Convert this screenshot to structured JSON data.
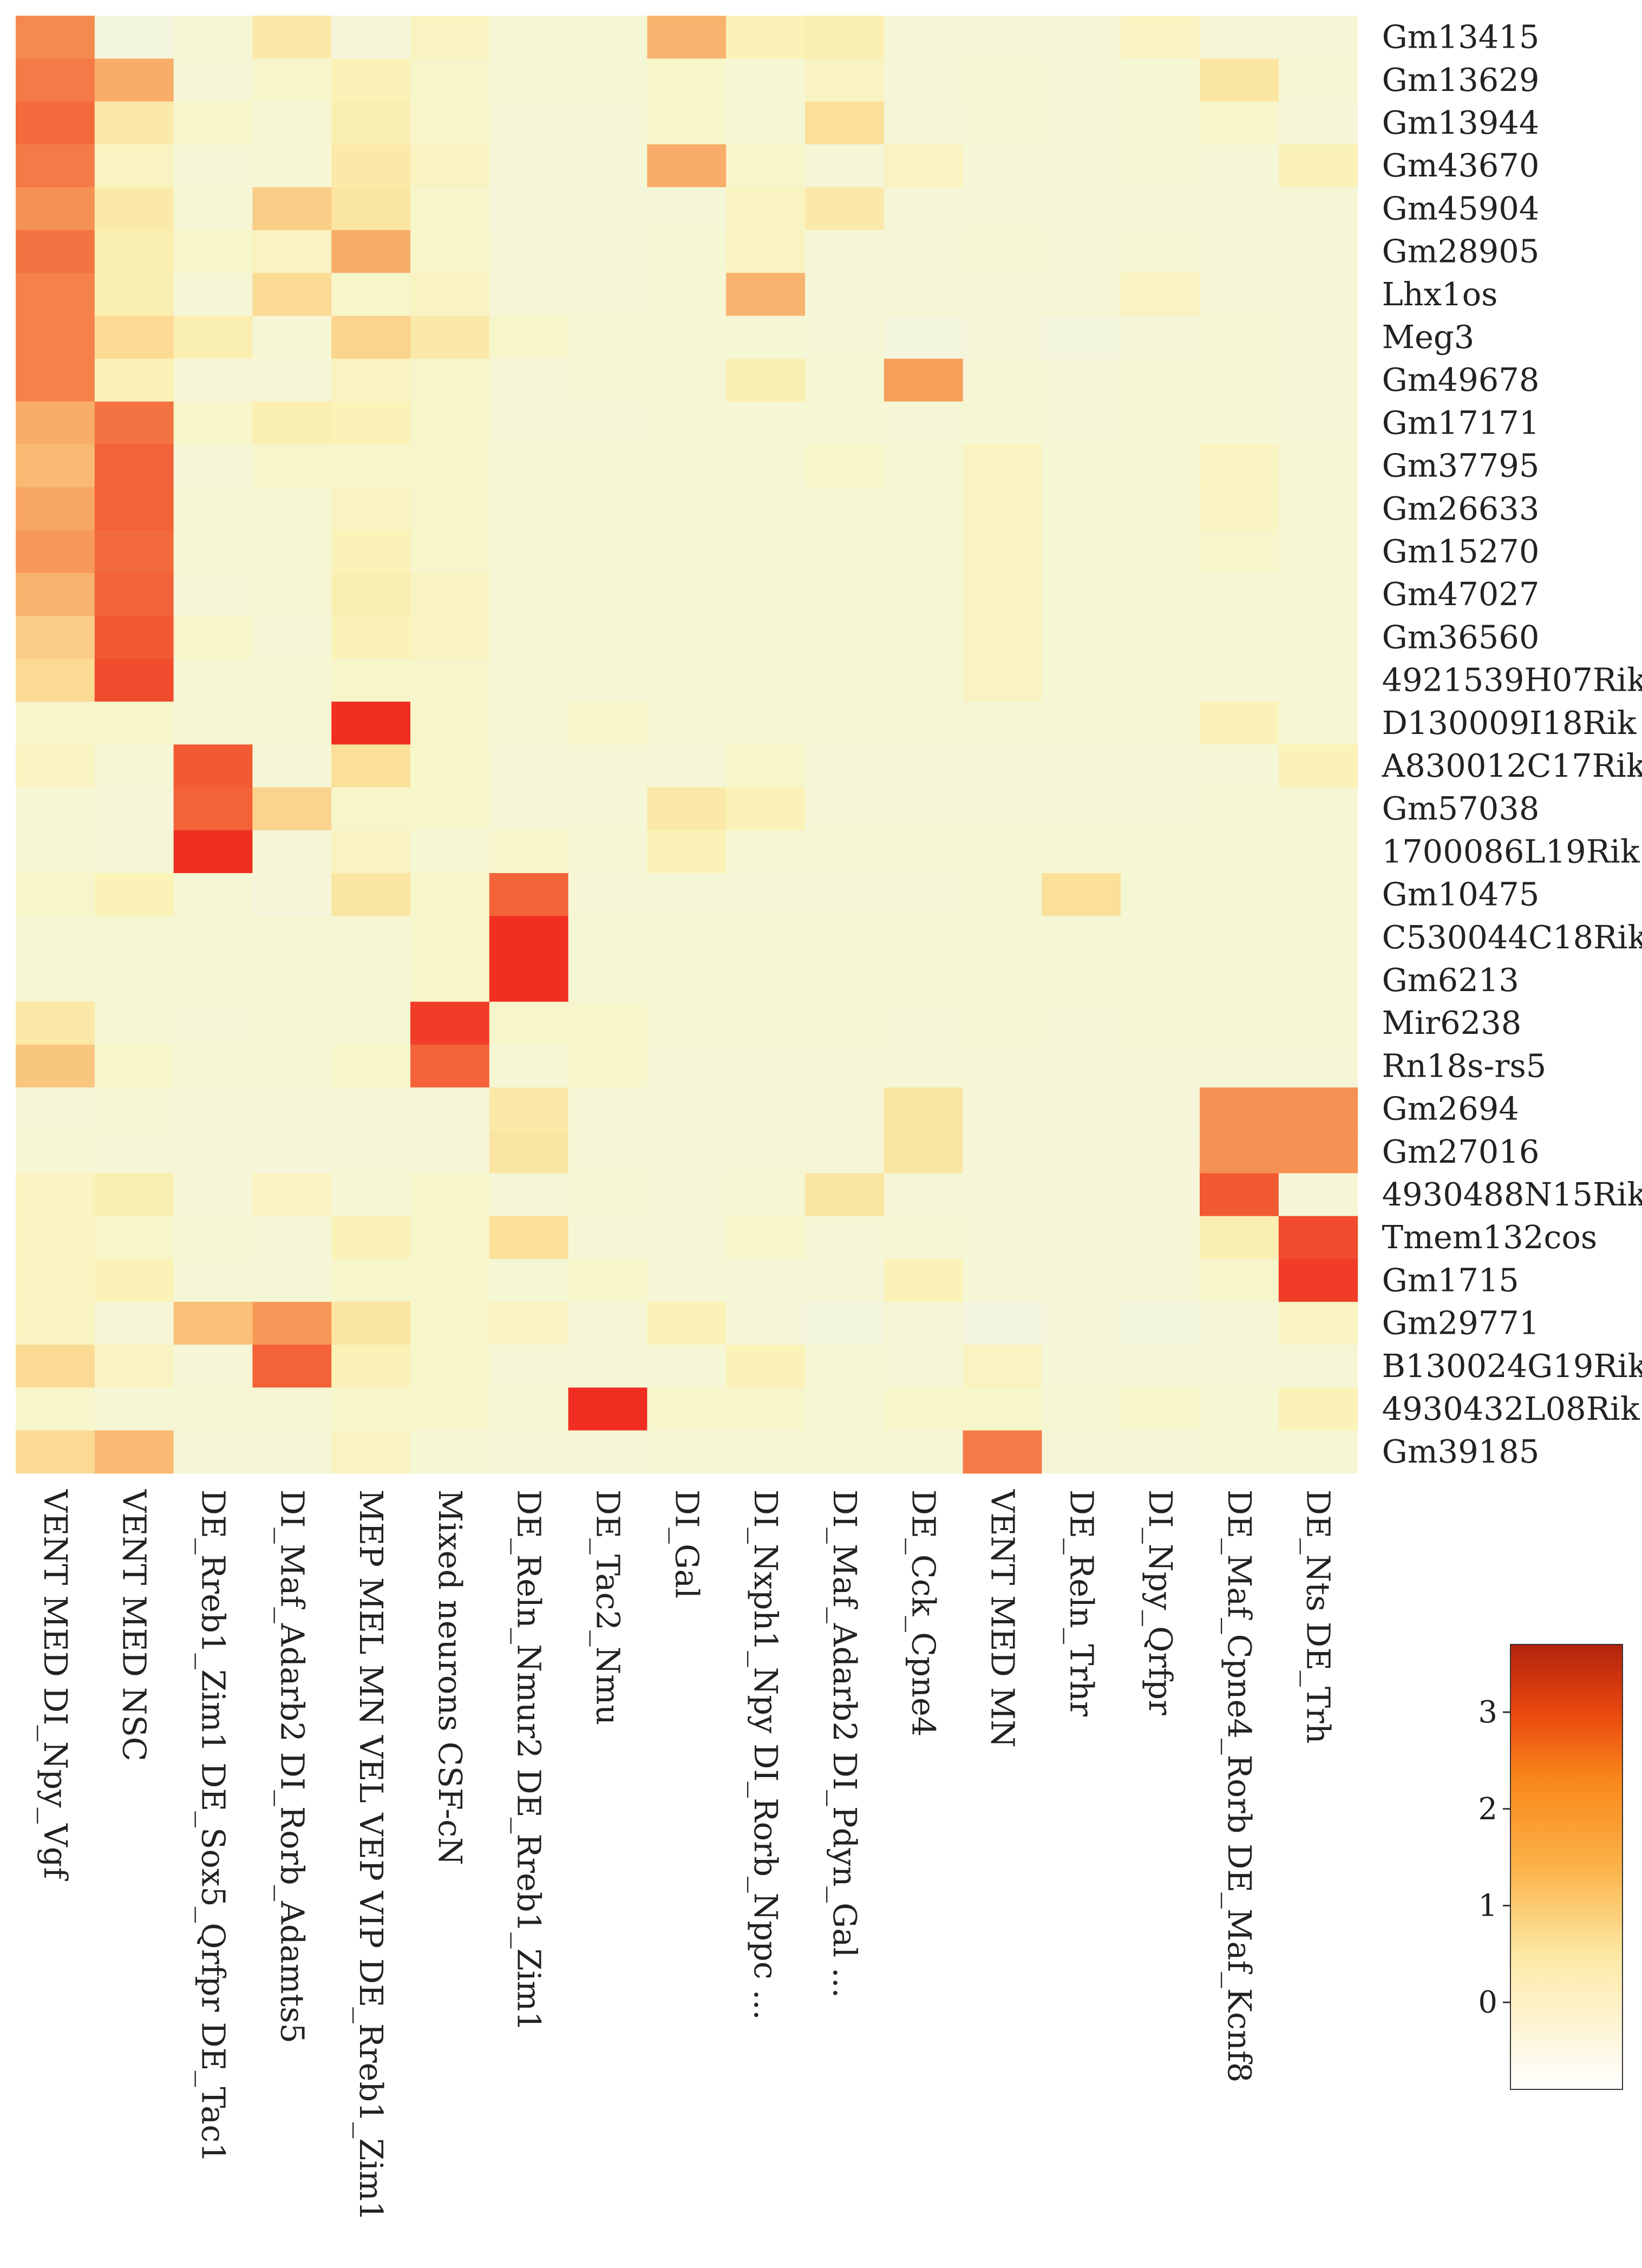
{
  "chart_data": {
    "type": "heatmap",
    "rows": [
      "Gm13415",
      "Gm13629",
      "Gm13944",
      "Gm43670",
      "Gm45904",
      "Gm28905",
      "Lhx1os",
      "Meg3",
      "Gm49678",
      "Gm17171",
      "Gm37795",
      "Gm26633",
      "Gm15270",
      "Gm47027",
      "Gm36560",
      "4921539H07Rik",
      "D130009I18Rik",
      "A830012C17Rik",
      "Gm57038",
      "1700086L19Rik",
      "Gm10475",
      "C530044C18Rik",
      "Gm6213",
      "Mir6238",
      "Rn18s-rs5",
      "Gm2694",
      "Gm27016",
      "4930488N15Rik",
      "Tmem132cos",
      "Gm1715",
      "Gm29771",
      "B130024G19Rik",
      "4930432L08Rik",
      "Gm39185"
    ],
    "columns": [
      "VENT MED DI_Npy_Vgf",
      "VENT MED NSC",
      "DE_Rreb1_Zim1 DE_Sox5_Qrfpr DE_Tac1",
      "DI_Maf_Adarb2 DI_Rorb_Adamts5",
      "MEP MEL MN VEL VEP VIP DE_Rreb1_Zim1",
      "Mixed neurons CSF-cN",
      "DE_Reln_Nmur2 DE_Rreb1_Zim1",
      "DE_Tac2_Nmu",
      "DI_Gal",
      "DI_Nxph1_Npy DI_Rorb_Nppc ...",
      "DI_Maf_Adarb2 DI_Pdyn_Gal ...",
      "DE_Cck_Cpne4",
      "VENT MED MN",
      "DE_Reln_Trhr",
      "DI_Npy_Qrfpr",
      "DE_Maf_Cpne4_Rorb DE_Maf_Kcnf8",
      "DE_Nts DE_Trh"
    ],
    "values": [
      [
        2.3,
        0.0,
        0.3,
        0.8,
        0.1,
        0.5,
        0.3,
        0.3,
        1.7,
        0.6,
        0.7,
        0.2,
        0.2,
        0.2,
        0.5,
        0.1,
        0.2
      ],
      [
        2.5,
        1.8,
        0.2,
        0.4,
        0.6,
        0.4,
        0.3,
        0.3,
        0.4,
        0.3,
        0.5,
        0.2,
        0.3,
        0.2,
        0.3,
        0.9,
        0.3
      ],
      [
        2.7,
        0.8,
        0.4,
        0.3,
        0.7,
        0.4,
        0.2,
        0.2,
        0.4,
        0.3,
        1.0,
        0.1,
        0.3,
        0.2,
        0.3,
        0.4,
        0.1
      ],
      [
        2.5,
        0.5,
        0.2,
        0.3,
        0.8,
        0.5,
        0.2,
        0.2,
        1.8,
        0.4,
        0.2,
        0.5,
        0.2,
        0.2,
        0.3,
        0.2,
        0.6
      ],
      [
        2.2,
        0.8,
        0.3,
        1.3,
        0.9,
        0.4,
        0.1,
        0.1,
        0.2,
        0.5,
        0.8,
        0.2,
        0.2,
        0.2,
        0.1,
        0.2,
        0.2
      ],
      [
        2.6,
        0.7,
        0.4,
        0.5,
        1.8,
        0.4,
        0.2,
        0.2,
        0.3,
        0.5,
        0.2,
        0.2,
        0.3,
        0.2,
        0.3,
        0.2,
        0.2
      ],
      [
        2.4,
        0.7,
        0.2,
        1.1,
        0.4,
        0.5,
        0.2,
        0.2,
        0.3,
        1.7,
        0.2,
        0.2,
        0.2,
        0.2,
        0.5,
        0.2,
        0.2
      ],
      [
        2.4,
        1.1,
        0.7,
        0.3,
        1.2,
        0.8,
        0.4,
        0.3,
        0.3,
        0.3,
        0.2,
        0.0,
        0.1,
        0.0,
        0.1,
        0.3,
        0.2
      ],
      [
        2.4,
        0.6,
        0.2,
        0.2,
        0.5,
        0.4,
        0.2,
        0.3,
        0.3,
        0.7,
        0.3,
        2.0,
        0.3,
        0.2,
        0.3,
        0.3,
        0.2
      ],
      [
        1.8,
        2.6,
        0.4,
        0.7,
        0.6,
        0.4,
        0.2,
        0.2,
        0.3,
        0.3,
        0.3,
        0.2,
        0.3,
        0.2,
        0.3,
        0.3,
        0.2
      ],
      [
        1.6,
        2.8,
        0.2,
        0.4,
        0.4,
        0.4,
        0.3,
        0.3,
        0.3,
        0.3,
        0.4,
        0.3,
        0.5,
        0.3,
        0.3,
        0.5,
        0.3
      ],
      [
        1.9,
        2.8,
        0.3,
        0.3,
        0.5,
        0.4,
        0.3,
        0.3,
        0.3,
        0.3,
        0.3,
        0.3,
        0.5,
        0.3,
        0.3,
        0.5,
        0.3
      ],
      [
        2.1,
        2.7,
        0.3,
        0.3,
        0.6,
        0.4,
        0.3,
        0.3,
        0.3,
        0.3,
        0.3,
        0.3,
        0.5,
        0.3,
        0.3,
        0.4,
        0.3
      ],
      [
        1.7,
        2.8,
        0.2,
        0.3,
        0.7,
        0.5,
        0.3,
        0.3,
        0.3,
        0.3,
        0.3,
        0.3,
        0.5,
        0.3,
        0.3,
        0.3,
        0.3
      ],
      [
        1.3,
        2.9,
        0.4,
        0.2,
        0.6,
        0.5,
        0.3,
        0.3,
        0.3,
        0.3,
        0.3,
        0.3,
        0.5,
        0.3,
        0.3,
        0.3,
        0.3
      ],
      [
        1.1,
        3.0,
        0.3,
        0.3,
        0.4,
        0.4,
        0.3,
        0.3,
        0.3,
        0.3,
        0.3,
        0.3,
        0.5,
        0.3,
        0.3,
        0.3,
        0.3
      ],
      [
        0.4,
        0.4,
        0.3,
        0.3,
        3.2,
        0.4,
        0.3,
        0.4,
        0.3,
        0.3,
        0.3,
        0.3,
        0.3,
        0.3,
        0.3,
        0.6,
        0.3
      ],
      [
        0.5,
        0.3,
        2.9,
        0.2,
        1.0,
        0.4,
        0.2,
        0.2,
        0.2,
        0.4,
        0.2,
        0.1,
        0.2,
        0.1,
        0.2,
        0.2,
        0.6
      ],
      [
        0.3,
        0.1,
        2.8,
        1.2,
        0.4,
        0.4,
        0.2,
        0.2,
        0.8,
        0.6,
        0.2,
        0.2,
        0.2,
        0.2,
        0.2,
        0.3,
        0.3
      ],
      [
        0.3,
        0.2,
        3.2,
        0.2,
        0.5,
        0.3,
        0.4,
        0.3,
        0.6,
        0.3,
        0.3,
        0.3,
        0.3,
        0.3,
        0.3,
        0.3,
        0.3
      ],
      [
        0.4,
        0.6,
        0.3,
        0.1,
        0.9,
        0.4,
        2.8,
        0.2,
        0.2,
        0.2,
        0.2,
        0.2,
        0.3,
        1.0,
        0.3,
        0.3,
        0.3
      ],
      [
        0.3,
        0.3,
        0.3,
        0.3,
        0.3,
        0.4,
        3.2,
        0.3,
        0.3,
        0.3,
        0.3,
        0.3,
        0.3,
        0.3,
        0.3,
        0.3,
        0.3
      ],
      [
        0.3,
        0.3,
        0.3,
        0.3,
        0.3,
        0.4,
        3.2,
        0.3,
        0.3,
        0.3,
        0.3,
        0.3,
        0.3,
        0.3,
        0.3,
        0.3,
        0.3
      ],
      [
        0.8,
        0.3,
        0.2,
        0.3,
        0.3,
        3.1,
        0.4,
        0.4,
        0.3,
        0.3,
        0.3,
        0.2,
        0.3,
        0.2,
        0.3,
        0.3,
        0.3
      ],
      [
        1.4,
        0.4,
        0.3,
        0.3,
        0.4,
        2.8,
        0.3,
        0.4,
        0.2,
        0.2,
        0.2,
        0.2,
        0.2,
        0.2,
        0.2,
        0.2,
        0.2
      ],
      [
        0.2,
        0.3,
        0.1,
        0.1,
        0.2,
        0.2,
        0.8,
        0.2,
        0.2,
        0.2,
        0.2,
        0.9,
        0.2,
        0.1,
        0.1,
        2.2,
        2.2
      ],
      [
        0.3,
        0.2,
        0.1,
        0.1,
        0.2,
        0.2,
        0.9,
        0.2,
        0.2,
        0.2,
        0.2,
        0.9,
        0.2,
        0.1,
        0.1,
        2.2,
        2.2
      ],
      [
        0.5,
        0.7,
        0.2,
        0.5,
        0.3,
        0.4,
        0.2,
        0.3,
        0.2,
        0.3,
        0.9,
        0.2,
        0.2,
        0.1,
        0.1,
        2.9,
        0.2
      ],
      [
        0.5,
        0.4,
        0.3,
        0.2,
        0.6,
        0.4,
        1.0,
        0.2,
        0.2,
        0.4,
        0.2,
        0.3,
        0.2,
        0.2,
        0.2,
        0.7,
        3.0
      ],
      [
        0.5,
        0.6,
        0.2,
        0.2,
        0.4,
        0.4,
        0.3,
        0.4,
        0.2,
        0.2,
        0.2,
        0.6,
        0.2,
        0.2,
        0.2,
        0.4,
        3.1
      ],
      [
        0.5,
        0.2,
        1.5,
        2.1,
        0.9,
        0.4,
        0.5,
        0.2,
        0.6,
        0.1,
        0.0,
        0.2,
        -0.1,
        0.1,
        0.0,
        0.2,
        0.5
      ],
      [
        1.1,
        0.5,
        0.2,
        2.8,
        0.6,
        0.4,
        0.2,
        0.2,
        0.2,
        0.6,
        0.3,
        0.2,
        0.5,
        0.2,
        0.2,
        0.2,
        0.2
      ],
      [
        0.4,
        0.3,
        0.3,
        0.3,
        0.4,
        0.4,
        0.3,
        3.2,
        0.4,
        0.4,
        0.3,
        0.4,
        0.4,
        0.3,
        0.4,
        0.3,
        0.6
      ],
      [
        1.1,
        1.6,
        0.2,
        0.2,
        0.5,
        0.3,
        0.2,
        0.2,
        0.3,
        0.3,
        0.3,
        0.3,
        2.5,
        0.2,
        0.2,
        0.3,
        0.3
      ]
    ],
    "colorbar": {
      "ticks": [
        3,
        2,
        1,
        0
      ],
      "range": [
        -0.9,
        3.7
      ]
    },
    "title": "",
    "xlabel": "",
    "ylabel": "",
    "legend_position": "bottom-right"
  }
}
